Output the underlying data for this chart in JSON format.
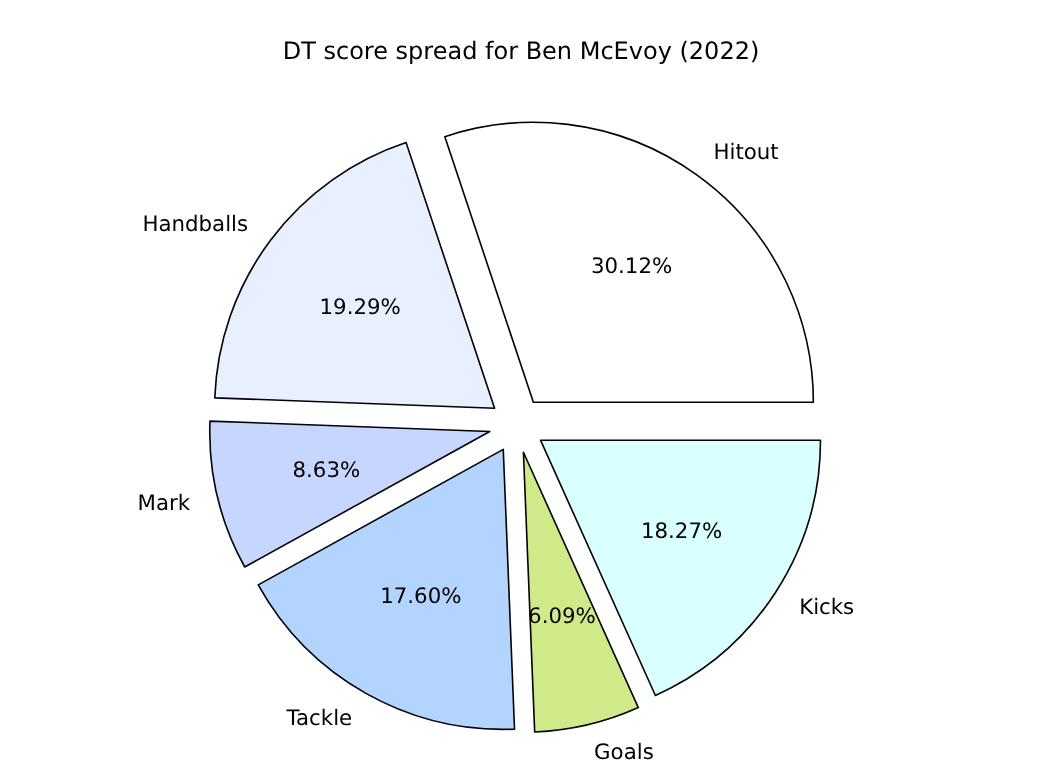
{
  "chart_data": {
    "type": "pie",
    "title": "DT score spread for Ben McEvoy (2022)",
    "categories": [
      "Hitout",
      "Handballs",
      "Mark",
      "Tackle",
      "Goals",
      "Kicks"
    ],
    "values": [
      30.12,
      19.29,
      8.63,
      17.6,
      6.09,
      18.27
    ],
    "value_labels": [
      "30.12%",
      "19.29%",
      "8.63%",
      "17.60%",
      "6.09%",
      "18.27%"
    ],
    "colors": [
      "#ffffff",
      "#e8f0ff",
      "#c6d6ff",
      "#b3d4ff",
      "#d0ea8a",
      "#d9ffff"
    ]
  }
}
